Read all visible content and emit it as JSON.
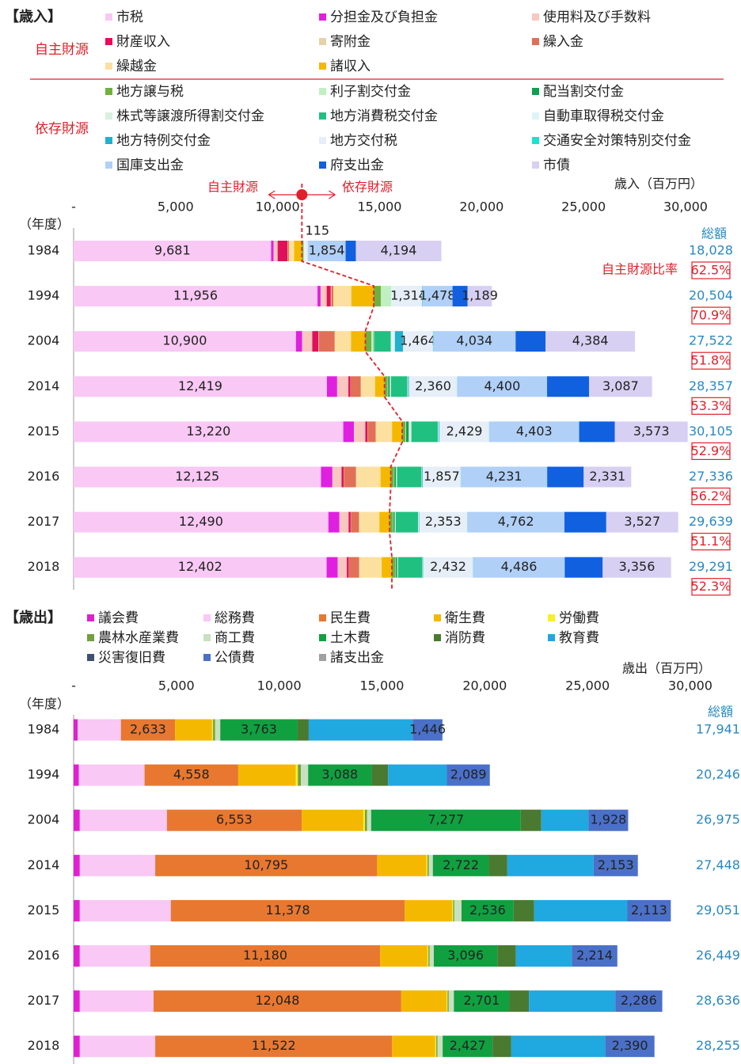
{
  "chart_data": [
    {
      "type": "stacked-bar-h",
      "title": "【歳入】",
      "x_label": "歳入（百万円）",
      "year_label": "（年度）",
      "total_title": "総額",
      "ratio_title": "自主財源比率",
      "group_labels": [
        "自主財源",
        "依存財源"
      ],
      "boundary_labels": [
        "自主財源",
        "依存財源"
      ],
      "categories": [
        "1984",
        "1994",
        "2004",
        "2014",
        "2015",
        "2016",
        "2017",
        "2018"
      ],
      "xlim": [
        0,
        30000
      ],
      "xticks": [
        {
          "value": 0,
          "label": "-"
        },
        {
          "value": 5000,
          "label": "5,000"
        },
        {
          "value": 10000,
          "label": "10,000"
        },
        {
          "value": 15000,
          "label": "15,000"
        },
        {
          "value": 20000,
          "label": "20,000"
        },
        {
          "value": 25000,
          "label": "25,000"
        },
        {
          "value": 30000,
          "label": "30,000"
        }
      ],
      "totals": [
        18028,
        20504,
        27522,
        28357,
        30105,
        27336,
        29639,
        29291
      ],
      "total_labels": [
        "18,028",
        "20,504",
        "27,522",
        "28,357",
        "30,105",
        "27,336",
        "29,639",
        "29,291"
      ],
      "ratios": [
        62.5,
        70.9,
        51.8,
        53.3,
        52.9,
        56.2,
        51.1,
        52.3
      ],
      "ratio_labels": [
        "62.5%",
        "70.9%",
        "51.8%",
        "53.3%",
        "52.9%",
        "56.2%",
        "51.1%",
        "52.3%"
      ],
      "series": [
        {
          "name": "市税",
          "color": "#f9c8f4",
          "values": [
            9681,
            11956,
            10900,
            12419,
            13220,
            12125,
            12490,
            12402
          ],
          "value_labels": [
            "9,681",
            "11,956",
            "10,900",
            "12,419",
            "13,220",
            "12,125",
            "12,490",
            "12,402"
          ]
        },
        {
          "name": "分担金及び負担金",
          "color": "#e020e0",
          "values": [
            120,
            150,
            300,
            500,
            520,
            560,
            540,
            540
          ]
        },
        {
          "name": "使用料及び手数料",
          "color": "#f8c8c0",
          "values": [
            200,
            300,
            500,
            550,
            560,
            450,
            450,
            450
          ]
        },
        {
          "name": "財産収入",
          "color": "#e0105a",
          "values": [
            480,
            200,
            300,
            100,
            100,
            100,
            100,
            100
          ]
        },
        {
          "name": "寄附金",
          "color": "#e8d0a8",
          "values": [
            20,
            30,
            20,
            10,
            10,
            10,
            10,
            10
          ]
        },
        {
          "name": "繰入金",
          "color": "#e07058",
          "values": [
            60,
            100,
            780,
            500,
            400,
            600,
            400,
            500
          ]
        },
        {
          "name": "繰越金",
          "color": "#fce0a0",
          "values": [
            250,
            877,
            800,
            700,
            800,
            1200,
            1000,
            1100
          ]
        },
        {
          "name": "諸収入",
          "color": "#f5b800",
          "values": [
            380,
            1100,
            700,
            460,
            500,
            500,
            500,
            500
          ]
        },
        {
          "name": "地方譲与税",
          "color": "#70b040",
          "values": [
            80,
            350,
            300,
            150,
            160,
            160,
            160,
            160
          ]
        },
        {
          "name": "利子割交付金",
          "color": "#c0f0c0",
          "values": [
            0,
            500,
            100,
            30,
            30,
            20,
            20,
            20
          ]
        },
        {
          "name": "配当割交付金",
          "color": "#10a050",
          "values": [
            0,
            0,
            30,
            80,
            130,
            80,
            70,
            80
          ]
        },
        {
          "name": "株式等譲渡所得割交付金",
          "color": "#d8f0e0",
          "values": [
            0,
            0,
            20,
            60,
            130,
            50,
            50,
            40
          ]
        },
        {
          "name": "地方消費税交付金",
          "color": "#20c080",
          "values": [
            0,
            0,
            800,
            800,
            1300,
            1200,
            1100,
            1200
          ]
        },
        {
          "name": "自動車取得税交付金",
          "color": "#e0f4f8",
          "values": [
            94,
            200,
            200,
            40,
            40,
            30,
            30,
            20
          ]
        },
        {
          "name": "地方特例交付金",
          "color": "#20b0d0",
          "values": [
            0,
            0,
            400,
            40,
            40,
            30,
            20,
            20
          ]
        },
        {
          "name": "地方交付税",
          "color": "#e6eef8",
          "values": [
            115,
            1314,
            1464,
            2360,
            2429,
            1857,
            2353,
            2432
          ],
          "value_labels": [
            "115",
            "1,314",
            "1,464",
            "2,360",
            "2,429",
            "1,857",
            "2,353",
            "2,432"
          ]
        },
        {
          "name": "交通安全対策特別交付金",
          "color": "#20e0d0",
          "values": [
            0,
            20,
            20,
            11,
            10,
            12,
            7,
            15
          ]
        },
        {
          "name": "国庫支出金",
          "color": "#b0d0f8",
          "values": [
            1854,
            1478,
            4034,
            4400,
            4403,
            4231,
            4762,
            4486
          ],
          "value_labels": [
            "1,854",
            "1,478",
            "4,034",
            "4,400",
            "4,403",
            "4,231",
            "4,762",
            "4,486"
          ]
        },
        {
          "name": "府支出金",
          "color": "#1060e0",
          "values": [
            500,
            740,
            1470,
            2060,
            1750,
            1790,
            2050,
            1860
          ]
        },
        {
          "name": "市債",
          "color": "#d8d0f2",
          "values": [
            4194,
            1189,
            4384,
            3087,
            3573,
            2331,
            3527,
            3356
          ],
          "value_labels": [
            "4,194",
            "1,189",
            "4,384",
            "3,087",
            "3,573",
            "2,331",
            "3,527",
            "3,356"
          ]
        }
      ]
    },
    {
      "type": "stacked-bar-h",
      "title": "【歳出】",
      "x_label": "歳出（百万円）",
      "year_label": "（年度）",
      "total_title": "総額",
      "categories": [
        "1984",
        "1994",
        "2004",
        "2014",
        "2015",
        "2016",
        "2017",
        "2018"
      ],
      "xlim": [
        0,
        30000
      ],
      "xticks": [
        {
          "value": 0,
          "label": "-"
        },
        {
          "value": 5000,
          "label": "5,000"
        },
        {
          "value": 10000,
          "label": "10,000"
        },
        {
          "value": 15000,
          "label": "15,000"
        },
        {
          "value": 20000,
          "label": "20,000"
        },
        {
          "value": 25000,
          "label": "25,000"
        },
        {
          "value": 30000,
          "label": "30,000"
        }
      ],
      "totals": [
        17941,
        20246,
        26975,
        27448,
        29051,
        26449,
        28636,
        28255
      ],
      "total_labels": [
        "17,941",
        "20,246",
        "26,975",
        "27,448",
        "29,051",
        "26,449",
        "28,636",
        "28,255"
      ],
      "series": [
        {
          "name": "議会費",
          "color": "#e020d0",
          "values": [
            200,
            250,
            300,
            300,
            300,
            300,
            300,
            300
          ]
        },
        {
          "name": "総務費",
          "color": "#f9c8f4",
          "values": [
            2100,
            3200,
            4240,
            3670,
            4430,
            3430,
            3590,
            3670
          ]
        },
        {
          "name": "民生費",
          "color": "#e87830",
          "label_color": "#ffffff",
          "values": [
            2633,
            4558,
            6553,
            10795,
            11378,
            11180,
            12048,
            11522
          ],
          "value_labels": [
            "2,633",
            "4,558",
            "6,553",
            "10,795",
            "11,378",
            "11,180",
            "12,048",
            "11,522"
          ]
        },
        {
          "name": "衛生費",
          "color": "#f5b800",
          "values": [
            1800,
            2800,
            3000,
            2400,
            2300,
            2300,
            2200,
            2100
          ]
        },
        {
          "name": "労働費",
          "color": "#f8f020",
          "values": [
            50,
            100,
            80,
            50,
            50,
            50,
            50,
            50
          ]
        },
        {
          "name": "農林水産業費",
          "color": "#70a040",
          "values": [
            100,
            150,
            100,
            60,
            60,
            60,
            60,
            60
          ]
        },
        {
          "name": "商工費",
          "color": "#c8e0c0",
          "values": [
            250,
            350,
            200,
            200,
            350,
            200,
            250,
            250
          ]
        },
        {
          "name": "土木費",
          "color": "#10a040",
          "label_color": "#ffffff",
          "values": [
            3763,
            3088,
            7277,
            2722,
            2536,
            3096,
            2701,
            2427
          ],
          "value_labels": [
            "3,763",
            "3,088",
            "7,277",
            "2,722",
            "2,536",
            "3,096",
            "2,701",
            "2,427"
          ]
        },
        {
          "name": "消防費",
          "color": "#4a7a30",
          "values": [
            540,
            800,
            1000,
            900,
            1000,
            900,
            950,
            900
          ]
        },
        {
          "name": "教育費",
          "color": "#20a8e0",
          "values": [
            5059,
            2861,
            2297,
            4198,
            4534,
            2719,
            4201,
            4586
          ]
        },
        {
          "name": "災害復旧費",
          "color": "#405070",
          "values": [
            0,
            0,
            0,
            0,
            0,
            0,
            0,
            0
          ]
        },
        {
          "name": "公債費",
          "color": "#4a70c8",
          "label_color": "#ffffff",
          "values": [
            1446,
            2089,
            1928,
            2153,
            2113,
            2214,
            2286,
            2390
          ],
          "value_labels": [
            "1,446",
            "2,089",
            "1,928",
            "2,153",
            "2,113",
            "2,214",
            "2,286",
            "2,390"
          ]
        },
        {
          "name": "諸支出金",
          "color": "#a0a0a0",
          "values": [
            0,
            0,
            0,
            0,
            0,
            0,
            0,
            0
          ]
        }
      ]
    }
  ]
}
